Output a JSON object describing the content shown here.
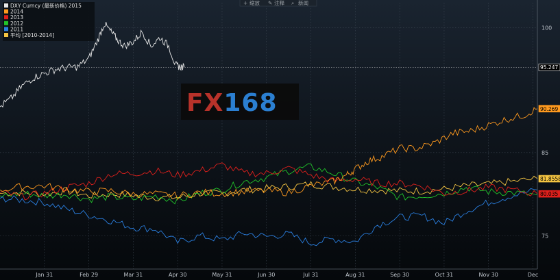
{
  "toolbar": [
    {
      "icon": "plus-icon",
      "label": "缩放"
    },
    {
      "icon": "pencil-icon",
      "label": "注释"
    },
    {
      "icon": "search-icon",
      "label": "新闻"
    }
  ],
  "watermark": {
    "left": "FX",
    "right": "168"
  },
  "colors": {
    "2015": "#e8e8e8",
    "2014": "#ff9a1f",
    "2013": "#e0201c",
    "2012": "#21c42a",
    "2011": "#2a7fe0",
    "avg": "#f5c542"
  },
  "chart_data": {
    "type": "line",
    "ylim": [
      71,
      103
    ],
    "xlim": [
      0,
      12.1
    ],
    "y_ticks": [
      75,
      85,
      100
    ],
    "x_ticks": [
      {
        "label": "Jan 31",
        "x": 1
      },
      {
        "label": "Feb 29",
        "x": 2
      },
      {
        "label": "Mar 31",
        "x": 3
      },
      {
        "label": "Apr 30",
        "x": 4
      },
      {
        "label": "May 31",
        "x": 5
      },
      {
        "label": "Jun 30",
        "x": 6
      },
      {
        "label": "Jul 31",
        "x": 7
      },
      {
        "label": "Aug 31",
        "x": 8
      },
      {
        "label": "Sep 30",
        "x": 9
      },
      {
        "label": "Oct 31",
        "x": 10
      },
      {
        "label": "Nov 30",
        "x": 11
      },
      {
        "label": "Dec",
        "x": 12
      }
    ],
    "grid": true,
    "legend_position": "top-left",
    "series": [
      {
        "key": "2015",
        "name": "DXY Curncy (最新价格) 2015",
        "last": "95.247",
        "x": [
          0,
          0.25,
          0.5,
          0.75,
          1,
          1.25,
          1.5,
          1.75,
          2,
          2.2,
          2.35,
          2.5,
          2.65,
          2.8,
          3,
          3.2,
          3.4,
          3.6,
          3.8,
          3.95,
          4.05,
          4.15
        ],
        "y": [
          90.5,
          91.5,
          93,
          94,
          94.5,
          95,
          95.2,
          95.3,
          96.3,
          98.5,
          100.5,
          99.5,
          98.5,
          97.8,
          98.3,
          99.5,
          97.8,
          98.8,
          97.8,
          95.5,
          95.3,
          95.247
        ]
      },
      {
        "key": "2014",
        "name": "2014",
        "last": "90.269",
        "x": [
          0,
          0.5,
          1,
          1.5,
          2,
          2.5,
          3,
          3.5,
          4,
          4.5,
          5,
          5.5,
          6,
          6.5,
          7,
          7.5,
          7.8,
          8,
          8.3,
          8.6,
          9,
          9.4,
          9.8,
          10.2,
          10.6,
          11,
          11.4,
          11.8,
          12.1
        ],
        "y": [
          80.5,
          80.9,
          81,
          80.6,
          80.3,
          80.4,
          80,
          80,
          79.8,
          80.2,
          80.1,
          80.3,
          80.4,
          80.2,
          81,
          81.5,
          82.3,
          83,
          84,
          84.5,
          85.5,
          85.5,
          86.2,
          87.3,
          87.6,
          88.3,
          89,
          89.5,
          90.269
        ]
      },
      {
        "key": "2013",
        "name": "2013",
        "last": "80.035",
        "x": [
          0,
          0.5,
          1,
          1.5,
          2,
          2.5,
          3,
          3.5,
          4,
          4.5,
          5,
          5.5,
          6,
          6.5,
          7,
          7.5,
          8,
          8.5,
          9,
          9.5,
          10,
          10.5,
          11,
          11.5,
          12.1
        ],
        "y": [
          80.2,
          79.7,
          80.1,
          80.8,
          81.3,
          82.4,
          82.5,
          82.8,
          82.3,
          82.8,
          83.5,
          82.5,
          82.5,
          83.1,
          82.3,
          81.6,
          81.8,
          81.3,
          81.3,
          81,
          80.1,
          80.4,
          80.8,
          80.5,
          80.035
        ]
      },
      {
        "key": "2012",
        "name": "2012",
        "last": "",
        "x": [
          0,
          0.5,
          1,
          1.5,
          2,
          2.5,
          3,
          3.5,
          4,
          4.5,
          5,
          5.5,
          6,
          6.5,
          7,
          7.5,
          8,
          8.5,
          9,
          9.5,
          10,
          10.5,
          11,
          11.5,
          12.1
        ],
        "y": [
          79.8,
          80.1,
          79.8,
          80,
          79.4,
          79.7,
          79.4,
          79.8,
          79.2,
          80.1,
          80.5,
          81.5,
          82,
          82.8,
          83.3,
          82.5,
          81.5,
          80.8,
          79.6,
          79.8,
          80.1,
          80.8,
          80.3,
          80.2,
          79.9
        ]
      },
      {
        "key": "2011",
        "name": "2011",
        "last": "",
        "x": [
          0,
          0.5,
          1,
          1.5,
          2,
          2.5,
          3,
          3.5,
          4,
          4.5,
          5,
          5.5,
          6,
          6.5,
          7,
          7.5,
          8,
          8.5,
          9,
          9.5,
          10,
          10.5,
          11,
          11.5,
          12.1
        ],
        "y": [
          79.5,
          79.3,
          79,
          78.2,
          77.5,
          76.8,
          76,
          75.8,
          74.2,
          75,
          74.5,
          75.3,
          74.9,
          75.2,
          74.1,
          74.6,
          74.3,
          76.3,
          77.2,
          77.4,
          76.5,
          78,
          79,
          79.8,
          80.5
        ]
      },
      {
        "key": "avg",
        "name": "平均 [2010-2014]",
        "last": "81.8558",
        "x": [
          0,
          0.5,
          1,
          1.5,
          2,
          2.5,
          3,
          3.5,
          4,
          4.5,
          5,
          5.5,
          6,
          6.5,
          7,
          7.5,
          8,
          8.5,
          9,
          9.5,
          10,
          10.5,
          11,
          11.5,
          12.1
        ],
        "y": [
          80.1,
          80.2,
          80,
          80.4,
          79.8,
          80,
          79.9,
          79.6,
          79.6,
          80.1,
          80.1,
          80.5,
          80.7,
          80.9,
          81.2,
          80.9,
          80.6,
          80.5,
          80.4,
          80.4,
          80.6,
          81,
          81.2,
          81.5,
          81.8558
        ]
      }
    ]
  }
}
